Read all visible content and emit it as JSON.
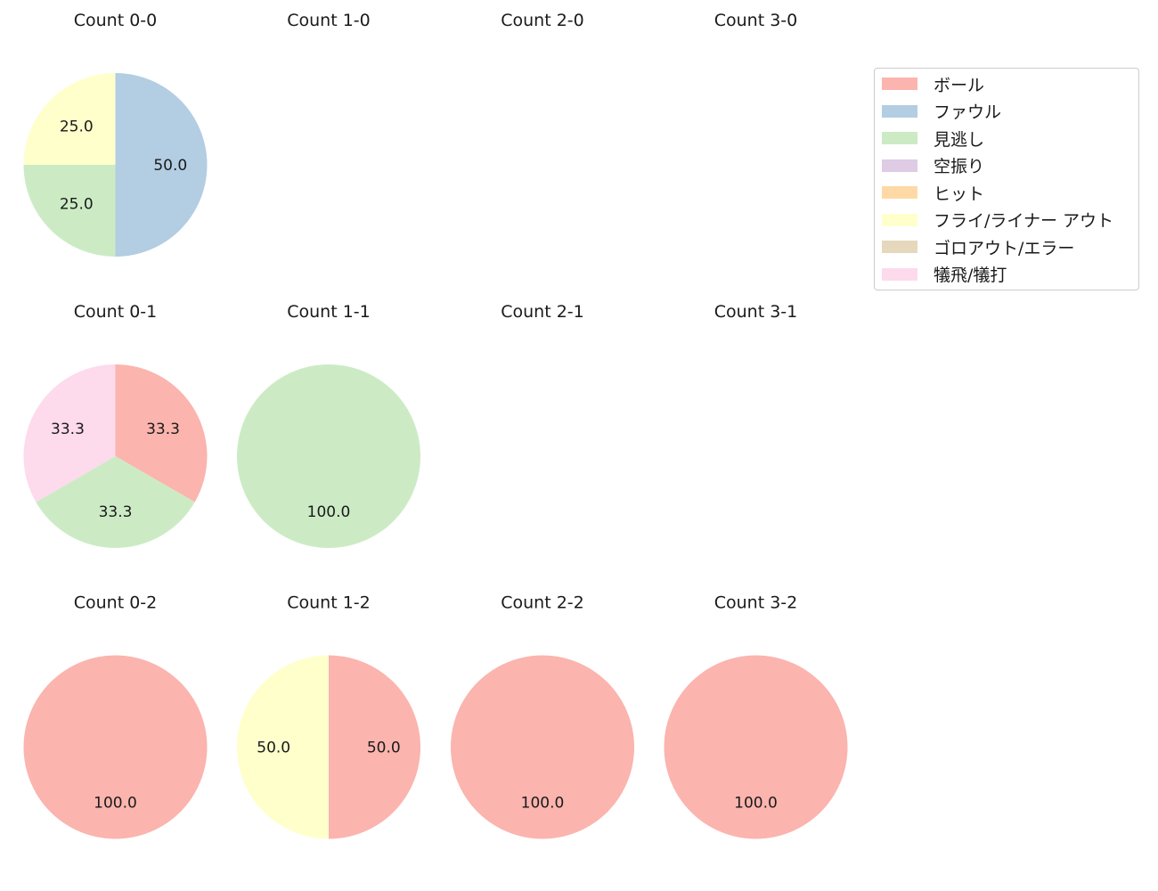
{
  "colors": {
    "ボール": "#fbb4ae",
    "ファウル": "#b3cde3",
    "見逃し": "#ccebc5",
    "空振り": "#decbe4",
    "ヒット": "#fed9a6",
    "フライ/ライナー アウト": "#ffffcc",
    "ゴロアウト/エラー": "#e5d8bd",
    "犠飛/犠打": "#fddaec"
  },
  "legend": {
    "items": [
      {
        "label": "ボール",
        "color": "#fbb4ae"
      },
      {
        "label": "ファウル",
        "color": "#b3cde3"
      },
      {
        "label": "見逃し",
        "color": "#ccebc5"
      },
      {
        "label": "空振り",
        "color": "#decbe4"
      },
      {
        "label": "ヒット",
        "color": "#fed9a6"
      },
      {
        "label": "フライ/ライナー アウト",
        "color": "#ffffcc"
      },
      {
        "label": "ゴロアウト/エラー",
        "color": "#e5d8bd"
      },
      {
        "label": "犠飛/犠打",
        "color": "#fddaec"
      }
    ]
  },
  "chart_data": [
    {
      "type": "pie",
      "title": "Count 0-0",
      "slices": [
        {
          "category": "ファウル",
          "value": 50.0,
          "label": "50.0"
        },
        {
          "category": "見逃し",
          "value": 25.0,
          "label": "25.0"
        },
        {
          "category": "フライ/ライナー アウト",
          "value": 25.0,
          "label": "25.0"
        }
      ]
    },
    {
      "type": "pie",
      "title": "Count 1-0",
      "slices": []
    },
    {
      "type": "pie",
      "title": "Count 2-0",
      "slices": []
    },
    {
      "type": "pie",
      "title": "Count 3-0",
      "slices": []
    },
    {
      "type": "pie",
      "title": "Count 0-1",
      "slices": [
        {
          "category": "ボール",
          "value": 33.3,
          "label": "33.3"
        },
        {
          "category": "見逃し",
          "value": 33.3,
          "label": "33.3"
        },
        {
          "category": "犠飛/犠打",
          "value": 33.3,
          "label": "33.3"
        }
      ]
    },
    {
      "type": "pie",
      "title": "Count 1-1",
      "slices": [
        {
          "category": "見逃し",
          "value": 100.0,
          "label": "100.0"
        }
      ]
    },
    {
      "type": "pie",
      "title": "Count 2-1",
      "slices": []
    },
    {
      "type": "pie",
      "title": "Count 3-1",
      "slices": []
    },
    {
      "type": "pie",
      "title": "Count 0-2",
      "slices": [
        {
          "category": "ボール",
          "value": 100.0,
          "label": "100.0"
        }
      ]
    },
    {
      "type": "pie",
      "title": "Count 1-2",
      "slices": [
        {
          "category": "ボール",
          "value": 50.0,
          "label": "50.0"
        },
        {
          "category": "フライ/ライナー アウト",
          "value": 50.0,
          "label": "50.0"
        }
      ]
    },
    {
      "type": "pie",
      "title": "Count 2-2",
      "slices": [
        {
          "category": "ボール",
          "value": 100.0,
          "label": "100.0"
        }
      ]
    },
    {
      "type": "pie",
      "title": "Count 3-2",
      "slices": [
        {
          "category": "ボール",
          "value": 100.0,
          "label": "100.0"
        }
      ]
    }
  ]
}
